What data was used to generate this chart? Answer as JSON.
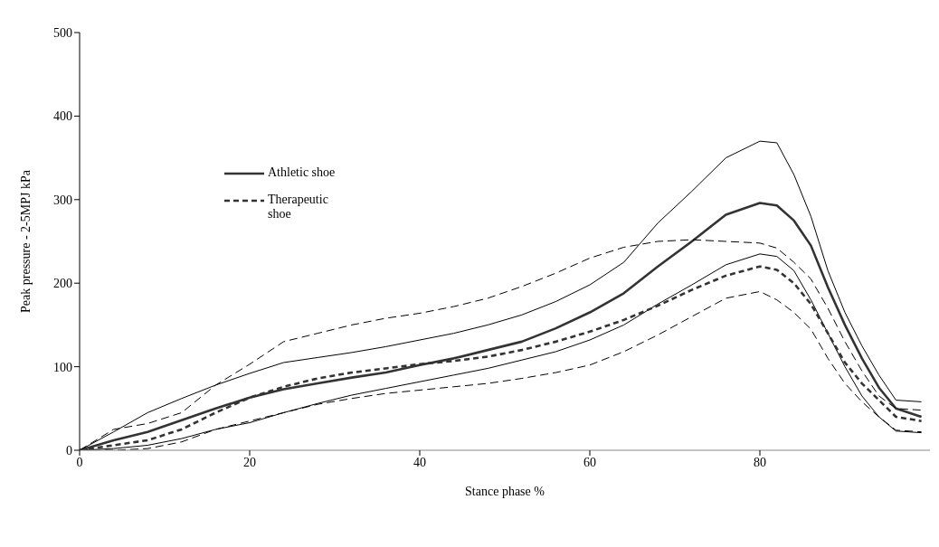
{
  "chart_data": {
    "type": "line",
    "xlabel": "Stance phase %",
    "ylabel": "Peak pressure - 2-5MPJ kPa",
    "x": [
      0,
      4,
      8,
      12,
      16,
      20,
      24,
      28,
      32,
      36,
      40,
      44,
      48,
      52,
      56,
      60,
      64,
      68,
      72,
      76,
      80,
      82,
      84,
      86,
      88,
      90,
      92,
      94,
      96,
      99
    ],
    "xlim": [
      0,
      100
    ],
    "xticks": [
      0,
      20,
      40,
      60,
      80
    ],
    "ylim": [
      0,
      500
    ],
    "yticks": [
      0,
      100,
      200,
      300,
      400,
      500
    ],
    "grid": false,
    "legend": "top left",
    "marker": "none",
    "series": [
      {
        "name": "Athletic shoe",
        "color": "#333333",
        "line_style": "solid",
        "values": [
          0,
          12,
          22,
          36,
          50,
          63,
          73,
          80,
          87,
          93,
          102,
          110,
          120,
          130,
          146,
          165,
          188,
          220,
          250,
          282,
          296,
          293,
          275,
          245,
          195,
          150,
          110,
          75,
          50,
          40
        ]
      },
      {
        "color": "#000000",
        "line_style": "solid",
        "values": [
          0,
          22,
          45,
          62,
          78,
          92,
          105,
          111,
          117,
          124,
          132,
          140,
          150,
          162,
          178,
          198,
          225,
          272,
          310,
          350,
          370,
          368,
          330,
          280,
          215,
          165,
          125,
          90,
          60,
          58
        ]
      },
      {
        "color": "#000000",
        "line_style": "solid",
        "values": [
          0,
          2,
          6,
          14,
          25,
          33,
          45,
          56,
          66,
          74,
          82,
          90,
          98,
          108,
          118,
          132,
          150,
          175,
          198,
          222,
          235,
          232,
          215,
          180,
          140,
          100,
          65,
          40,
          23,
          21
        ]
      },
      {
        "name": "Therapeutic shoe",
        "color": "#333333",
        "line_style": "dashed",
        "values": [
          0,
          6,
          12,
          25,
          45,
          63,
          76,
          86,
          93,
          98,
          103,
          107,
          112,
          120,
          130,
          142,
          156,
          173,
          192,
          209,
          220,
          216,
          200,
          175,
          140,
          105,
          80,
          60,
          40,
          35
        ]
      },
      {
        "color": "#000000",
        "line_style": "dashed",
        "values": [
          0,
          25,
          32,
          45,
          78,
          103,
          130,
          140,
          150,
          158,
          164,
          172,
          182,
          196,
          212,
          230,
          243,
          250,
          252,
          250,
          248,
          242,
          225,
          205,
          170,
          130,
          95,
          65,
          50,
          48
        ]
      },
      {
        "color": "#000000",
        "line_style": "dashed",
        "values": [
          0,
          0,
          2,
          10,
          25,
          35,
          45,
          55,
          62,
          68,
          72,
          76,
          80,
          86,
          93,
          102,
          118,
          138,
          160,
          182,
          190,
          180,
          165,
          145,
          110,
          80,
          58,
          40,
          24,
          22
        ]
      }
    ]
  }
}
